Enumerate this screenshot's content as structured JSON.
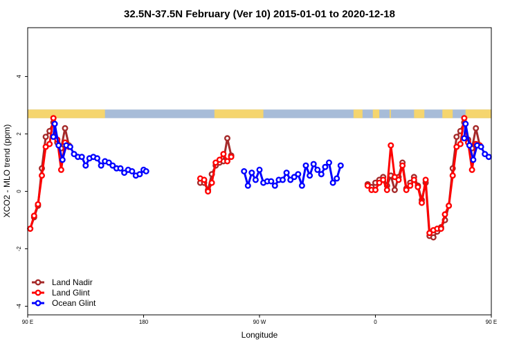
{
  "chart_data": {
    "type": "line",
    "title": "32.5N-37.5N February (Ver 10)   2015-01-01 to 2020-12-18",
    "xlabel": "Longitude",
    "ylabel": "XCO2 - MLO trend (ppm)",
    "xlim": [
      90,
      450
    ],
    "ylim": [
      -4.3,
      5.7
    ],
    "x_ticks": [
      {
        "value": 90,
        "label": "90 E"
      },
      {
        "value": 180,
        "label": "180"
      },
      {
        "value": 270,
        "label": "90 W"
      },
      {
        "value": 360,
        "label": "0"
      },
      {
        "value": 450,
        "label": "90 E"
      },
      {
        "value": 540,
        "label": "180"
      }
    ],
    "y_ticks": [
      {
        "value": -4,
        "label": "-4"
      },
      {
        "value": -2,
        "label": "-2"
      },
      {
        "value": 0,
        "label": "0"
      },
      {
        "value": 2,
        "label": "2"
      },
      {
        "value": 4,
        "label": "4"
      }
    ],
    "land_mask_band": {
      "y_min": 2.55,
      "y_max": 2.85,
      "land_color": "#f5d56e",
      "ocean_color": "#a7bcd8"
    },
    "land_ranges": [
      [
        90,
        150
      ],
      [
        235,
        273
      ],
      [
        343,
        350
      ],
      [
        358,
        363
      ],
      [
        371,
        372
      ],
      [
        390,
        398
      ],
      [
        412,
        420
      ],
      [
        430,
        540
      ],
      [
        546,
        550
      ]
    ],
    "legend_position": "bottom-left",
    "series": [
      {
        "name": "Land Nadir",
        "color": "#a52a2a",
        "segments": [
          [
            [
              92,
              -1.3
            ],
            [
              95,
              -0.9
            ],
            [
              98,
              -0.5
            ],
            [
              101,
              0.8
            ],
            [
              104,
              1.9
            ],
            [
              107,
              2.1
            ],
            [
              110,
              2.4
            ],
            [
              113,
              1.7
            ],
            [
              116,
              1.5
            ],
            [
              119,
              2.2
            ],
            [
              122,
              1.6
            ]
          ],
          [
            [
              224,
              0.3
            ],
            [
              227,
              0.3
            ],
            [
              230,
              0.05
            ],
            [
              233,
              0.6
            ],
            [
              236,
              0.9
            ],
            [
              239,
              1.0
            ],
            [
              242,
              1.05
            ],
            [
              245,
              1.85
            ],
            [
              248,
              1.25
            ]
          ],
          [
            [
              354,
              0.25
            ],
            [
              357,
              0.15
            ],
            [
              360,
              0.3
            ],
            [
              363,
              0.4
            ],
            [
              366,
              0.5
            ],
            [
              369,
              0.2
            ],
            [
              372,
              0.55
            ],
            [
              375,
              0.05
            ],
            [
              378,
              0.5
            ],
            [
              381,
              1.0
            ],
            [
              384,
              0.1
            ],
            [
              387,
              0.3
            ],
            [
              390,
              0.5
            ],
            [
              393,
              0.2
            ],
            [
              396,
              -0.3
            ],
            [
              399,
              0.3
            ],
            [
              402,
              -1.55
            ],
            [
              405,
              -1.6
            ],
            [
              408,
              -1.4
            ],
            [
              411,
              -1.25
            ],
            [
              414,
              -1.0
            ],
            [
              417,
              -0.5
            ],
            [
              420,
              0.8
            ],
            [
              423,
              1.9
            ],
            [
              426,
              2.1
            ],
            [
              429,
              2.4
            ],
            [
              432,
              1.8
            ],
            [
              435,
              1.5
            ],
            [
              438,
              2.2
            ],
            [
              441,
              1.6
            ]
          ]
        ]
      },
      {
        "name": "Land Glint",
        "color": "#ff0000",
        "segments": [
          [
            [
              92,
              -1.3
            ],
            [
              95,
              -0.85
            ],
            [
              98,
              -0.45
            ],
            [
              101,
              0.55
            ],
            [
              104,
              1.55
            ],
            [
              107,
              1.65
            ],
            [
              110,
              2.55
            ],
            [
              113,
              1.8
            ],
            [
              116,
              0.75
            ],
            [
              119,
              1.7
            ],
            [
              122,
              1.55
            ]
          ],
          [
            [
              224,
              0.45
            ],
            [
              227,
              0.4
            ],
            [
              230,
              0.0
            ],
            [
              233,
              0.3
            ],
            [
              236,
              1.0
            ],
            [
              239,
              1.1
            ],
            [
              242,
              1.3
            ],
            [
              245,
              1.05
            ],
            [
              248,
              1.2
            ]
          ],
          [
            [
              354,
              0.2
            ],
            [
              357,
              0.05
            ],
            [
              360,
              0.05
            ],
            [
              363,
              0.3
            ],
            [
              366,
              0.4
            ],
            [
              369,
              0.05
            ],
            [
              372,
              1.6
            ],
            [
              375,
              0.5
            ],
            [
              378,
              0.4
            ],
            [
              381,
              0.9
            ],
            [
              384,
              0.05
            ],
            [
              387,
              0.2
            ],
            [
              390,
              0.4
            ],
            [
              393,
              0.15
            ],
            [
              396,
              -0.4
            ],
            [
              399,
              0.4
            ],
            [
              402,
              -1.45
            ],
            [
              405,
              -1.35
            ],
            [
              408,
              -1.3
            ],
            [
              411,
              -1.3
            ],
            [
              414,
              -0.8
            ],
            [
              417,
              -0.5
            ],
            [
              420,
              0.55
            ],
            [
              423,
              1.55
            ],
            [
              426,
              1.65
            ],
            [
              429,
              2.55
            ],
            [
              432,
              1.7
            ],
            [
              435,
              0.75
            ],
            [
              438,
              1.65
            ],
            [
              441,
              1.6
            ]
          ]
        ]
      },
      {
        "name": "Ocean Glint",
        "color": "#0000ff",
        "segments": [
          [
            [
              110,
              1.9
            ],
            [
              111,
              2.35
            ],
            [
              114,
              1.6
            ],
            [
              117,
              1.1
            ],
            [
              120,
              1.6
            ],
            [
              123,
              1.55
            ],
            [
              126,
              1.3
            ],
            [
              129,
              1.2
            ],
            [
              132,
              1.2
            ],
            [
              135,
              0.9
            ],
            [
              138,
              1.15
            ],
            [
              141,
              1.2
            ],
            [
              144,
              1.15
            ],
            [
              147,
              0.9
            ],
            [
              150,
              1.05
            ],
            [
              153,
              1.0
            ],
            [
              156,
              0.9
            ],
            [
              159,
              0.8
            ],
            [
              162,
              0.8
            ],
            [
              165,
              0.65
            ],
            [
              168,
              0.75
            ],
            [
              171,
              0.7
            ],
            [
              174,
              0.55
            ],
            [
              177,
              0.6
            ],
            [
              180,
              0.75
            ],
            [
              182,
              0.7
            ]
          ],
          [
            [
              258,
              0.7
            ],
            [
              261,
              0.2
            ],
            [
              264,
              0.65
            ],
            [
              267,
              0.4
            ],
            [
              270,
              0.75
            ],
            [
              273,
              0.3
            ],
            [
              276,
              0.35
            ],
            [
              279,
              0.35
            ],
            [
              282,
              0.2
            ],
            [
              285,
              0.4
            ],
            [
              288,
              0.4
            ],
            [
              291,
              0.65
            ],
            [
              294,
              0.4
            ],
            [
              297,
              0.5
            ],
            [
              300,
              0.6
            ],
            [
              303,
              0.2
            ],
            [
              306,
              0.9
            ],
            [
              309,
              0.55
            ],
            [
              312,
              0.95
            ],
            [
              315,
              0.75
            ],
            [
              318,
              0.6
            ],
            [
              321,
              0.85
            ],
            [
              324,
              1.0
            ],
            [
              327,
              0.3
            ],
            [
              330,
              0.45
            ],
            [
              333,
              0.9
            ]
          ],
          [
            [
              429,
              1.85
            ],
            [
              430,
              2.35
            ],
            [
              433,
              1.6
            ],
            [
              436,
              1.1
            ],
            [
              439,
              1.6
            ],
            [
              442,
              1.55
            ],
            [
              445,
              1.3
            ],
            [
              448,
              1.2
            ]
          ]
        ]
      }
    ]
  }
}
